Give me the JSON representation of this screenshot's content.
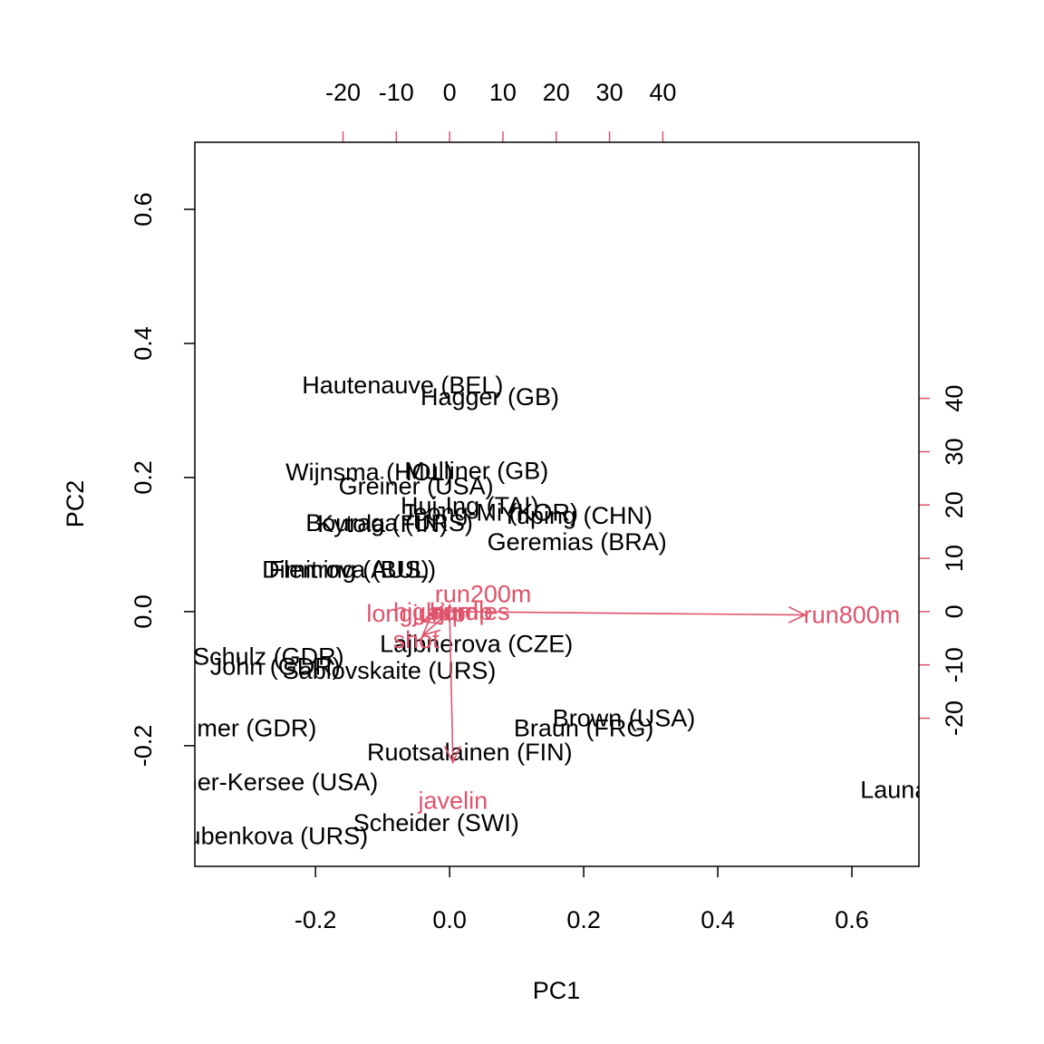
{
  "chart_data": {
    "type": "scatter",
    "subtype": "biplot",
    "title": "",
    "xlabel": "PC1",
    "ylabel": "PC2",
    "xlim": [
      -0.38,
      0.7
    ],
    "ylim": [
      -0.38,
      0.7
    ],
    "xticks": [
      "-0.2",
      "0.0",
      "0.2",
      "0.4",
      "0.6"
    ],
    "yticks": [
      "-0.2",
      "0.0",
      "0.2",
      "0.4",
      "0.6"
    ],
    "top_axis": {
      "ticks": [
        "-20",
        "-10",
        "0",
        "10",
        "20",
        "30",
        "40"
      ],
      "color": "#DF536B"
    },
    "right_axis": {
      "ticks": [
        "-20",
        "-10",
        "0",
        "10",
        "20",
        "30",
        "40"
      ],
      "color": "#DF536B"
    },
    "observations": [
      {
        "label": "Hautenauve (BEL)",
        "x": -0.07,
        "y": 0.338
      },
      {
        "label": "Hagger (GB)",
        "x": 0.06,
        "y": 0.32
      },
      {
        "label": "Wijnsma (HOL)",
        "x": -0.12,
        "y": 0.208
      },
      {
        "label": "Mulliner (GB)",
        "x": 0.04,
        "y": 0.21
      },
      {
        "label": "Greiner (USA)",
        "x": -0.05,
        "y": 0.187
      },
      {
        "label": "Hui-Ing (TAI)",
        "x": 0.03,
        "y": 0.158
      },
      {
        "label": "Jeong-Mi (KOR)",
        "x": 0.06,
        "y": 0.148
      },
      {
        "label": "Yuping (CHN)",
        "x": 0.19,
        "y": 0.143
      },
      {
        "label": "Kytola (FIN)",
        "x": -0.1,
        "y": 0.131
      },
      {
        "label": "Bouraga (URS)",
        "x": -0.09,
        "y": 0.132
      },
      {
        "label": "Geremias (BRA)",
        "x": 0.19,
        "y": 0.104
      },
      {
        "label": "Dimitrova (BUL)",
        "x": -0.15,
        "y": 0.063
      },
      {
        "label": "Fleming (AUS)",
        "x": -0.15,
        "y": 0.063
      },
      {
        "label": "Lajbnerova (CZE)",
        "x": 0.04,
        "y": -0.048
      },
      {
        "label": "Schulz (GDR)",
        "x": -0.27,
        "y": -0.067
      },
      {
        "label": "John (GDR)",
        "x": -0.26,
        "y": -0.082
      },
      {
        "label": "Sablovskaite (URS)",
        "x": -0.09,
        "y": -0.088
      },
      {
        "label": "Brown (USA)",
        "x": 0.26,
        "y": -0.159
      },
      {
        "label": "Behmer (GDR)",
        "x": -0.32,
        "y": -0.174
      },
      {
        "label": "Braun (FRG)",
        "x": 0.2,
        "y": -0.174
      },
      {
        "label": "Ruotsalainen (FIN)",
        "x": 0.03,
        "y": -0.21
      },
      {
        "label": "Joyner-Kersee (USA)",
        "x": -0.28,
        "y": -0.254
      },
      {
        "label": "Launa (PNG)",
        "x": 0.72,
        "y": -0.266
      },
      {
        "label": "Scheider (SWI)",
        "x": -0.02,
        "y": -0.315
      },
      {
        "label": "Choubenkova (URS)",
        "x": -0.29,
        "y": -0.335
      }
    ],
    "variables": [
      {
        "name": "run800m",
        "x": 0.53,
        "y": -0.005,
        "label_x": 0.6,
        "label_y": -0.005
      },
      {
        "name": "run200m",
        "x": 0.0,
        "y": 0.01,
        "label_x": 0.05,
        "label_y": 0.026
      },
      {
        "name": "highjump",
        "x": -0.03,
        "y": -0.005,
        "label_x": -0.01,
        "label_y": 0.0
      },
      {
        "name": "hurdles",
        "x": -0.03,
        "y": -0.005,
        "label_x": 0.03,
        "label_y": 0.0
      },
      {
        "name": "longjump",
        "x": -0.04,
        "y": -0.015,
        "label_x": -0.05,
        "label_y": -0.003
      },
      {
        "name": "shot",
        "x": -0.04,
        "y": -0.035,
        "label_x": -0.05,
        "label_y": -0.042
      },
      {
        "name": "javelin",
        "x": 0.005,
        "y": -0.225,
        "label_x": 0.005,
        "label_y": -0.282
      }
    ],
    "colors": {
      "points": "#000000",
      "arrows": "#DF536B",
      "frame": "#000000"
    }
  }
}
